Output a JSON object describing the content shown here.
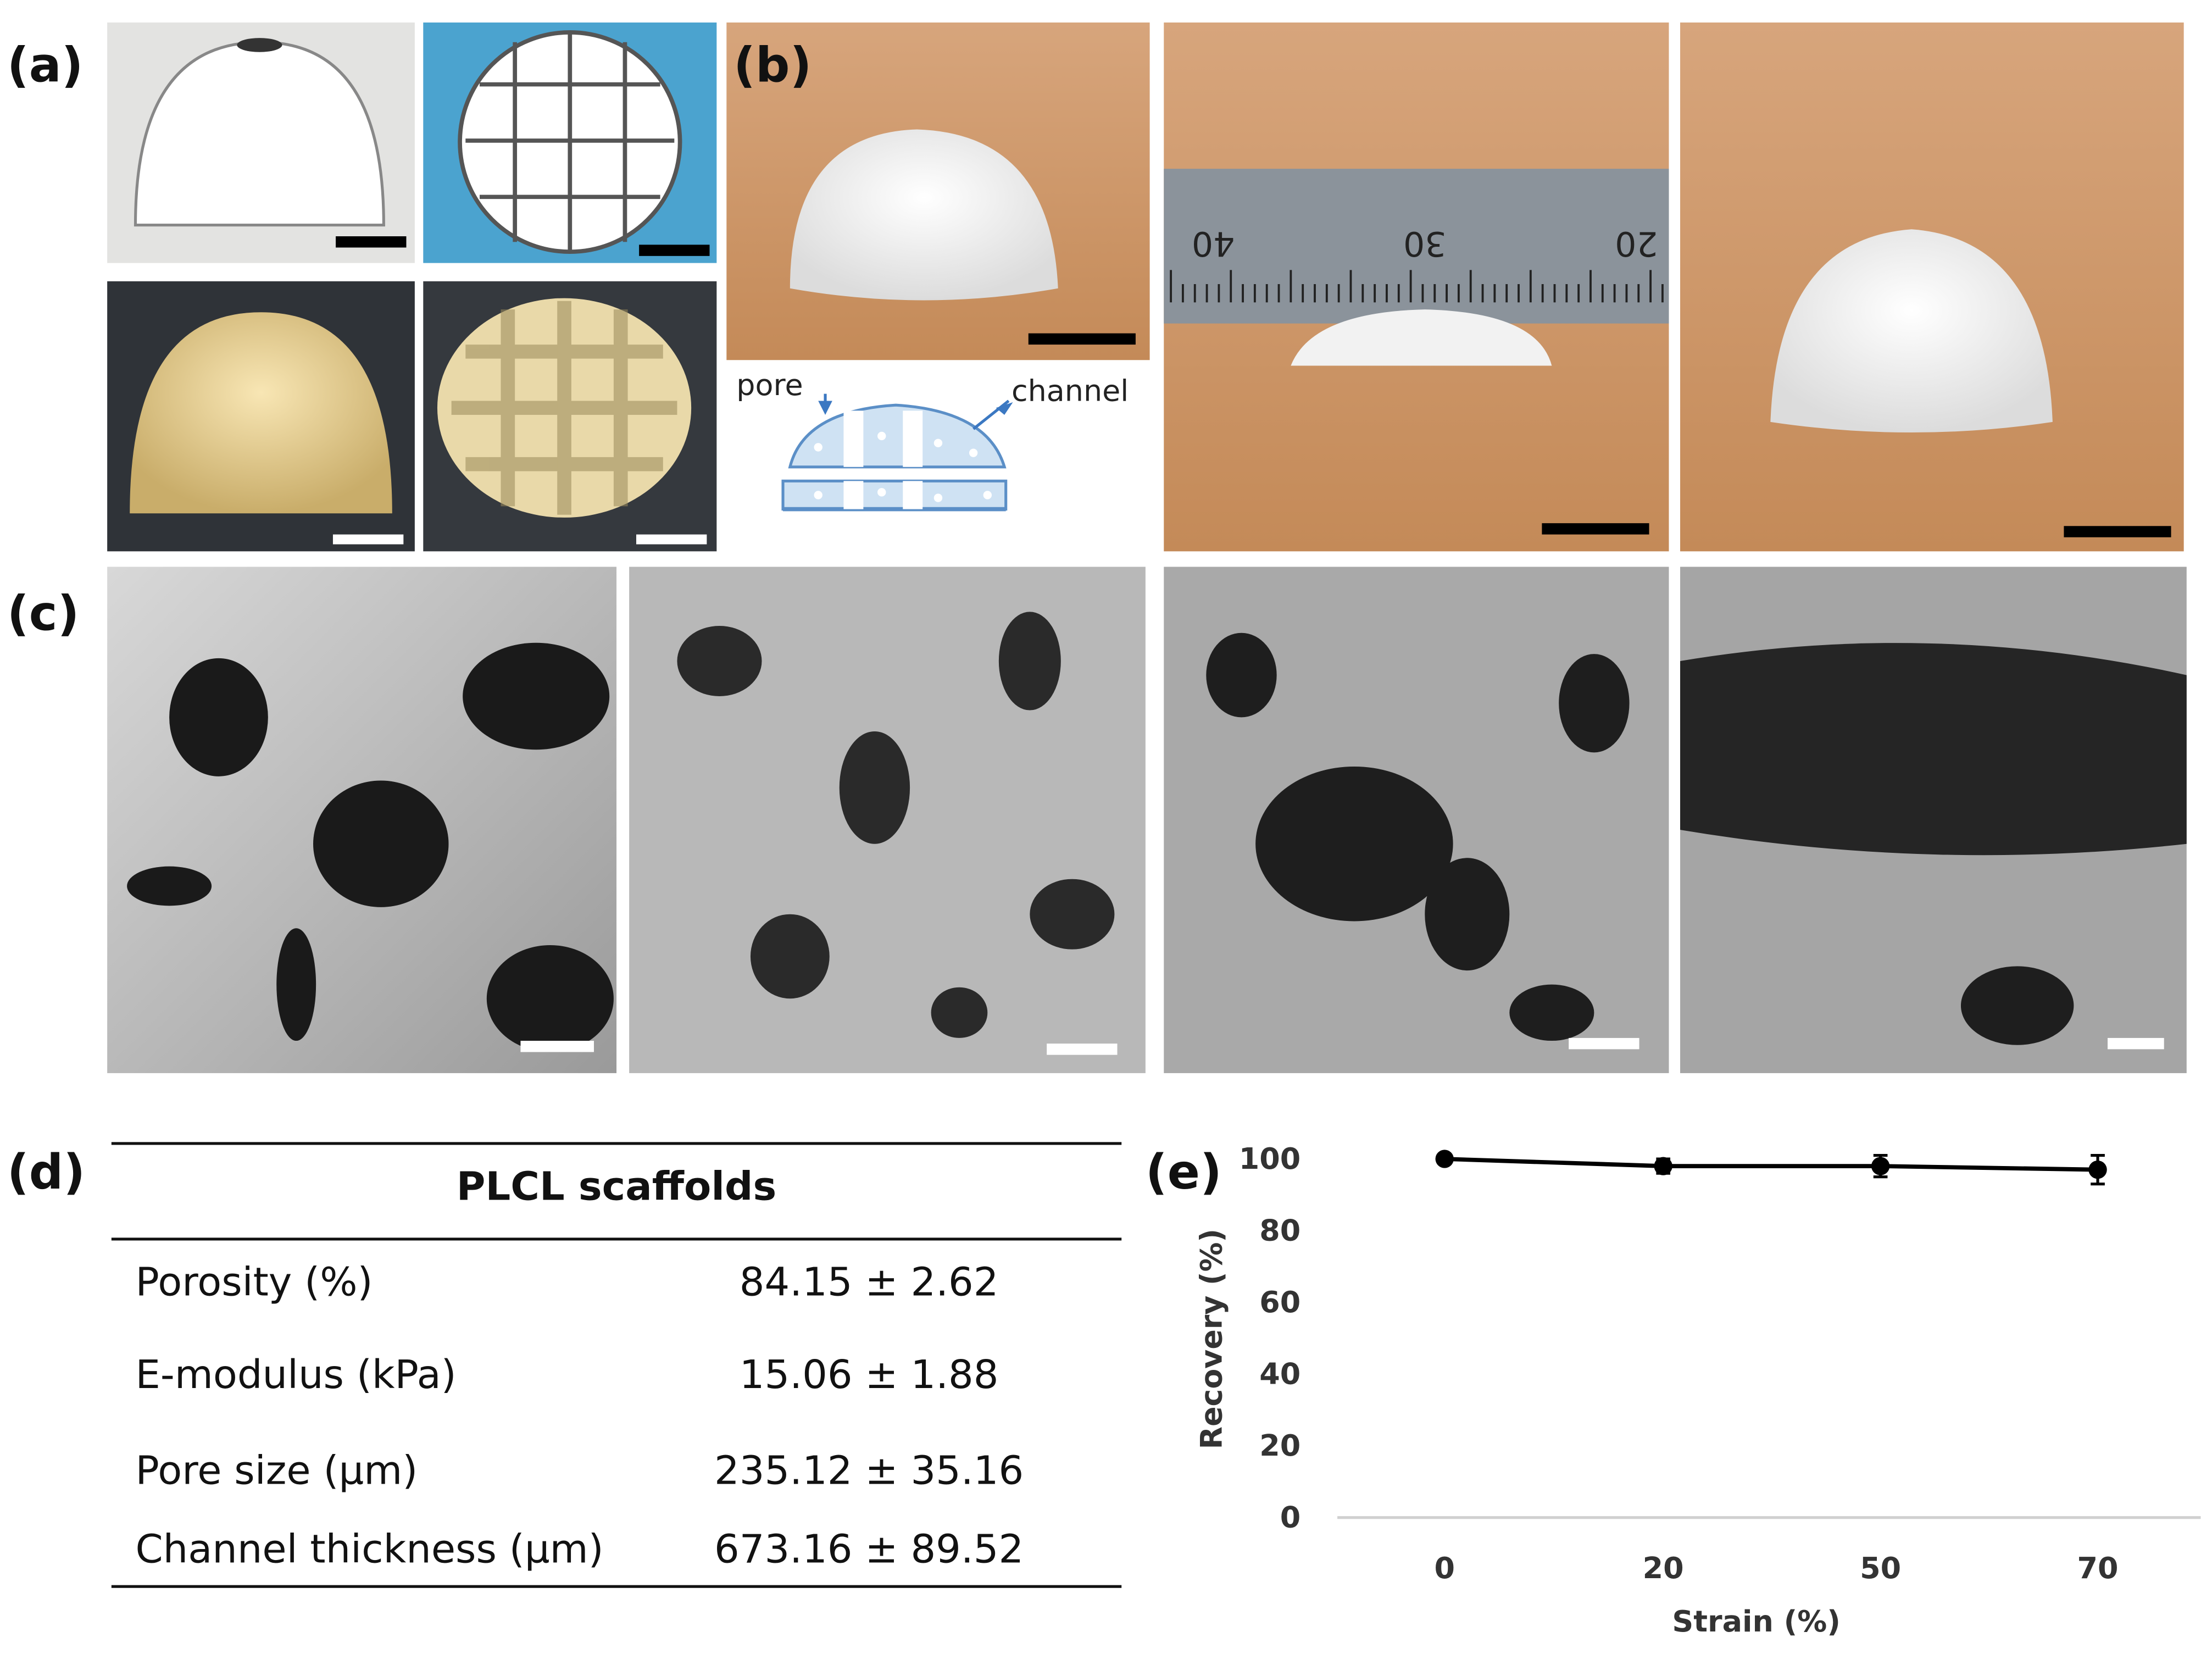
{
  "panel_labels": [
    "(a)",
    "(b)",
    "(c)",
    "(d)",
    "(e)"
  ],
  "schematic": {
    "pore_label": "pore",
    "channel_label": "channel"
  },
  "ruler_labels": [
    "40",
    "30",
    "20"
  ],
  "table": {
    "title": "PLCL scaffolds",
    "rows": [
      [
        "Porosity (%)",
        "84.15 ± 2.62"
      ],
      [
        "E-modulus (kPa)",
        "15.06 ± 1.88"
      ],
      [
        "Pore size (μm)",
        "235.12 ± 35.16"
      ],
      [
        "Channel thickness (μm)",
        "673.16 ± 89.52"
      ]
    ]
  },
  "chart_data": {
    "type": "line",
    "x_label": "Strain (%)",
    "y_label": "Recovery (%)",
    "categories": [
      "0",
      "20",
      "50",
      "70"
    ],
    "values": [
      100,
      98,
      98,
      97
    ],
    "errors": [
      0.5,
      2,
      3,
      4
    ],
    "color": "#000000",
    "ylim": [
      0,
      100
    ],
    "yticks": [
      0,
      20,
      40,
      60,
      80,
      100
    ],
    "grid": false
  }
}
